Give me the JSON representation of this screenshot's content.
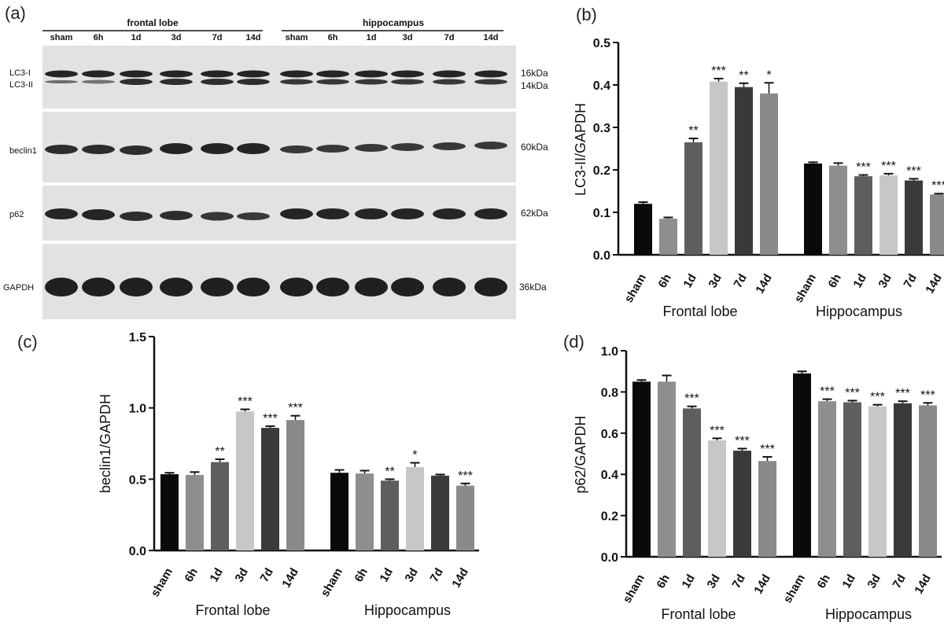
{
  "panels": {
    "a": "(a)",
    "b": "(b)",
    "c": "(c)",
    "d": "(d)"
  },
  "blot": {
    "groups": [
      "frontal lobe",
      "hippocampus"
    ],
    "lanes": [
      "sham",
      "6h",
      "1d",
      "3d",
      "7d",
      "14d",
      "sham",
      "6h",
      "1d",
      "3d",
      "7d",
      "14d"
    ],
    "rows": [
      {
        "labels": [
          "LC3-I",
          "LC3-II"
        ],
        "kda": [
          "16kDa",
          "14kDa"
        ]
      },
      {
        "labels": [
          "beclin1"
        ],
        "kda": [
          "60kDa"
        ]
      },
      {
        "labels": [
          "p62"
        ],
        "kda": [
          "62kDa"
        ]
      },
      {
        "labels": [
          "GAPDH"
        ],
        "kda": [
          "36kDa"
        ]
      }
    ],
    "colors": {
      "membrane": "#e2e2e2",
      "band": "#1a1a1a"
    }
  },
  "chart_data": [
    {
      "panel": "b",
      "type": "bar",
      "ylabel": "LC3-II/GAPDH",
      "ylim": [
        0,
        0.5
      ],
      "yticks": [
        "0.0",
        "0.1",
        "0.2",
        "0.3",
        "0.4",
        "0.5"
      ],
      "groups": [
        "Frontal lobe",
        "Hippocampus"
      ],
      "categories": [
        "sham",
        "6h",
        "1d",
        "3d",
        "7d",
        "14d"
      ],
      "series": [
        {
          "values": [
            0.12,
            0.085,
            0.265,
            0.408,
            0.395,
            0.38
          ],
          "errors": [
            0.004,
            0.003,
            0.009,
            0.007,
            0.009,
            0.025
          ],
          "stars": [
            "",
            "",
            "**",
            "***",
            "**",
            "*"
          ]
        },
        {
          "values": [
            0.215,
            0.21,
            0.185,
            0.187,
            0.175,
            0.142
          ],
          "errors": [
            0.003,
            0.006,
            0.003,
            0.004,
            0.004,
            0.002
          ],
          "stars": [
            "",
            "",
            "***",
            "***",
            "***",
            "***"
          ]
        }
      ],
      "colors": [
        "#0a0a0a",
        "#8e8e8e",
        "#5e5e5e",
        "#c7c7c7",
        "#3a3a3a",
        "#8a8a8a"
      ]
    },
    {
      "panel": "c",
      "type": "bar",
      "ylabel": "beclin1/GAPDH",
      "ylim": [
        0,
        1.5
      ],
      "yticks": [
        "0.0",
        "0.5",
        "1.0",
        "1.5"
      ],
      "groups": [
        "Frontal lobe",
        "Hippocampus"
      ],
      "categories": [
        "sham",
        "6h",
        "1d",
        "3d",
        "7d",
        "14d"
      ],
      "series": [
        {
          "values": [
            0.535,
            0.53,
            0.62,
            0.975,
            0.86,
            0.915
          ],
          "errors": [
            0.01,
            0.02,
            0.02,
            0.015,
            0.012,
            0.03
          ],
          "stars": [
            "",
            "",
            "**",
            "***",
            "***",
            "***"
          ]
        },
        {
          "values": [
            0.545,
            0.54,
            0.49,
            0.585,
            0.525,
            0.455
          ],
          "errors": [
            0.02,
            0.02,
            0.01,
            0.03,
            0.008,
            0.015
          ],
          "stars": [
            "",
            "",
            "**",
            "*",
            "",
            "***"
          ]
        }
      ],
      "colors": [
        "#0a0a0a",
        "#8e8e8e",
        "#5e5e5e",
        "#c7c7c7",
        "#3a3a3a",
        "#8a8a8a"
      ]
    },
    {
      "panel": "d",
      "type": "bar",
      "ylabel": "p62/GAPDH",
      "ylim": [
        0,
        1.0
      ],
      "yticks": [
        "0.0",
        "0.2",
        "0.4",
        "0.6",
        "0.8",
        "1.0"
      ],
      "groups": [
        "Frontal lobe",
        "Hippocampus"
      ],
      "categories": [
        "sham",
        "6h",
        "1d",
        "3d",
        "7d",
        "14d"
      ],
      "series": [
        {
          "values": [
            0.85,
            0.85,
            0.72,
            0.565,
            0.515,
            0.465
          ],
          "errors": [
            0.008,
            0.03,
            0.01,
            0.01,
            0.01,
            0.02
          ],
          "stars": [
            "",
            "",
            "***",
            "***",
            "***",
            "***"
          ]
        },
        {
          "values": [
            0.89,
            0.755,
            0.75,
            0.73,
            0.745,
            0.735
          ],
          "errors": [
            0.01,
            0.01,
            0.008,
            0.008,
            0.01,
            0.012
          ],
          "stars": [
            "",
            "***",
            "***",
            "***",
            "***",
            "***"
          ]
        }
      ],
      "colors": [
        "#0a0a0a",
        "#8e8e8e",
        "#5e5e5e",
        "#c7c7c7",
        "#3a3a3a",
        "#8a8a8a"
      ]
    }
  ]
}
